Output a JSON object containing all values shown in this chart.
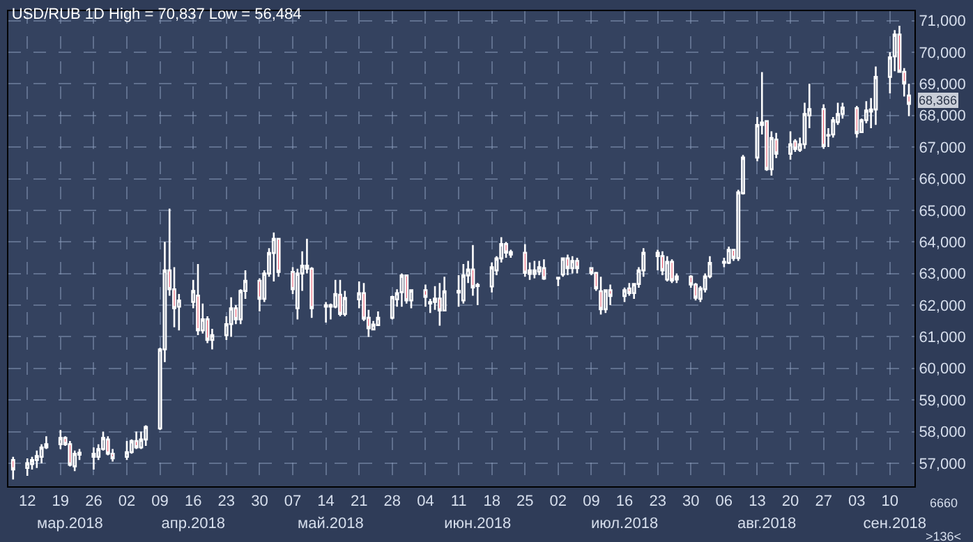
{
  "chart_data": {
    "type": "candlestick",
    "title": "USD/RUB 1D High = 70,837 Low = 56,484",
    "x": [
      "2018-03-09",
      "2018-03-12",
      "2018-03-13",
      "2018-03-14",
      "2018-03-15",
      "2018-03-16",
      "2018-03-19",
      "2018-03-20",
      "2018-03-21",
      "2018-03-22",
      "2018-03-23",
      "2018-03-26",
      "2018-03-27",
      "2018-03-28",
      "2018-03-29",
      "2018-03-30",
      "2018-04-02",
      "2018-04-03",
      "2018-04-04",
      "2018-04-05",
      "2018-04-06",
      "2018-04-09",
      "2018-04-10",
      "2018-04-11",
      "2018-04-12",
      "2018-04-13",
      "2018-04-16",
      "2018-04-17",
      "2018-04-18",
      "2018-04-19",
      "2018-04-20",
      "2018-04-23",
      "2018-04-24",
      "2018-04-25",
      "2018-04-26",
      "2018-04-27",
      "2018-04-30",
      "2018-05-01",
      "2018-05-02",
      "2018-05-03",
      "2018-05-04",
      "2018-05-07",
      "2018-05-08",
      "2018-05-09",
      "2018-05-10",
      "2018-05-11",
      "2018-05-14",
      "2018-05-15",
      "2018-05-16",
      "2018-05-17",
      "2018-05-18",
      "2018-05-21",
      "2018-05-22",
      "2018-05-23",
      "2018-05-24",
      "2018-05-25",
      "2018-05-28",
      "2018-05-29",
      "2018-05-30",
      "2018-05-31",
      "2018-06-01",
      "2018-06-04",
      "2018-06-05",
      "2018-06-06",
      "2018-06-07",
      "2018-06-08",
      "2018-06-11",
      "2018-06-12",
      "2018-06-13",
      "2018-06-14",
      "2018-06-15",
      "2018-06-18",
      "2018-06-19",
      "2018-06-20",
      "2018-06-21",
      "2018-06-22",
      "2018-06-25",
      "2018-06-26",
      "2018-06-27",
      "2018-06-28",
      "2018-06-29",
      "2018-07-02",
      "2018-07-03",
      "2018-07-04",
      "2018-07-05",
      "2018-07-06",
      "2018-07-09",
      "2018-07-10",
      "2018-07-11",
      "2018-07-12",
      "2018-07-13",
      "2018-07-16",
      "2018-07-17",
      "2018-07-18",
      "2018-07-19",
      "2018-07-20",
      "2018-07-23",
      "2018-07-24",
      "2018-07-25",
      "2018-07-26",
      "2018-07-27",
      "2018-07-30",
      "2018-07-31",
      "2018-08-01",
      "2018-08-02",
      "2018-08-03",
      "2018-08-06",
      "2018-08-07",
      "2018-08-08",
      "2018-08-09",
      "2018-08-10",
      "2018-08-13",
      "2018-08-14",
      "2018-08-15",
      "2018-08-16",
      "2018-08-17",
      "2018-08-20",
      "2018-08-21",
      "2018-08-22",
      "2018-08-23",
      "2018-08-24",
      "2018-08-27",
      "2018-08-28",
      "2018-08-29",
      "2018-08-30",
      "2018-08-31",
      "2018-09-03",
      "2018-09-04",
      "2018-09-05",
      "2018-09-06",
      "2018-09-07",
      "2018-09-10",
      "2018-09-11",
      "2018-09-12",
      "2018-09-13",
      "2018-09-14"
    ],
    "ohlc": [
      [
        57100,
        57200,
        56484,
        56800
      ],
      [
        56850,
        57150,
        56600,
        57000
      ],
      [
        56970,
        57200,
        56800,
        57100
      ],
      [
        57100,
        57400,
        56850,
        57230
      ],
      [
        57200,
        57600,
        57000,
        57500
      ],
      [
        57500,
        57850,
        57450,
        57600
      ],
      [
        57600,
        58050,
        57450,
        57800
      ],
      [
        57800,
        57850,
        57550,
        57600
      ],
      [
        57600,
        57700,
        56900,
        56950
      ],
      [
        56900,
        57400,
        56750,
        57300
      ],
      [
        57270,
        57450,
        57100,
        57330
      ],
      [
        57300,
        57500,
        56800,
        57200
      ],
      [
        57200,
        57600,
        57100,
        57450
      ],
      [
        57450,
        58000,
        57400,
        57800
      ],
      [
        57750,
        57850,
        57250,
        57300
      ],
      [
        57300,
        57450,
        57050,
        57150
      ],
      [
        57200,
        57700,
        57100,
        57350
      ],
      [
        57350,
        57750,
        57300,
        57700
      ],
      [
        57700,
        58000,
        57450,
        57500
      ],
      [
        57500,
        58000,
        57450,
        57750
      ],
      [
        57750,
        58200,
        57550,
        58150
      ],
      [
        58100,
        60650,
        58050,
        60600
      ],
      [
        60600,
        64000,
        60200,
        63100
      ],
      [
        63100,
        65050,
        62300,
        62500
      ],
      [
        62500,
        63200,
        61300,
        61900
      ],
      [
        61950,
        62350,
        61200,
        62150
      ],
      [
        62100,
        62800,
        61900,
        62450
      ],
      [
        62300,
        63300,
        61050,
        61200
      ],
      [
        61200,
        62050,
        61100,
        61550
      ],
      [
        61550,
        61650,
        60800,
        60900
      ],
      [
        60900,
        61250,
        60600,
        61050
      ],
      [
        61050,
        61650,
        60900,
        61400
      ],
      [
        61400,
        62250,
        61000,
        61900
      ],
      [
        61900,
        62000,
        61400,
        61550
      ],
      [
        61550,
        62500,
        61400,
        62450
      ],
      [
        62450,
        63100,
        62200,
        62770
      ],
      [
        62770,
        62850,
        61800,
        62200
      ],
      [
        62200,
        63100,
        62100,
        63000
      ],
      [
        63000,
        63800,
        62900,
        63650
      ],
      [
        63650,
        64300,
        62750,
        64100
      ],
      [
        64100,
        64100,
        62900,
        63050
      ],
      [
        63050,
        63200,
        62350,
        62500
      ],
      [
        61900,
        63150,
        61550,
        63000
      ],
      [
        63000,
        63700,
        62450,
        63250
      ],
      [
        63250,
        64100,
        63000,
        63150
      ],
      [
        63150,
        63200,
        61600,
        61900
      ],
      [
        61950,
        62100,
        61450,
        62000
      ],
      [
        61950,
        62050,
        61550,
        62000
      ],
      [
        61950,
        62800,
        61900,
        62350
      ],
      [
        62330,
        62800,
        61650,
        61720
      ],
      [
        61720,
        62450,
        61650,
        62230
      ],
      [
        62180,
        62750,
        61900,
        62380
      ],
      [
        62380,
        62700,
        61500,
        61570
      ],
      [
        61600,
        61850,
        61000,
        61270
      ],
      [
        61230,
        61500,
        61200,
        61390
      ],
      [
        61370,
        61800,
        61350,
        61600
      ],
      [
        61600,
        62300,
        61550,
        62260
      ],
      [
        62180,
        62500,
        61950,
        62380
      ],
      [
        62410,
        63000,
        61950,
        62940
      ],
      [
        62940,
        62950,
        62050,
        62150
      ],
      [
        62150,
        62500,
        61900,
        62470
      ],
      [
        62470,
        62650,
        61950,
        62260
      ],
      [
        62050,
        62200,
        61750,
        62100
      ],
      [
        62100,
        62600,
        61850,
        62210
      ],
      [
        62210,
        62700,
        61350,
        61830
      ],
      [
        61830,
        62900,
        61820,
        62440
      ],
      [
        62400,
        62950,
        61950,
        62450
      ],
      [
        62150,
        63300,
        62050,
        62940
      ],
      [
        62940,
        63400,
        62700,
        63130
      ],
      [
        63130,
        63900,
        62300,
        62560
      ],
      [
        62600,
        62700,
        62000,
        62640
      ],
      [
        62590,
        63350,
        62400,
        63200
      ],
      [
        63100,
        63550,
        62950,
        63480
      ],
      [
        63480,
        64150,
        63350,
        63930
      ],
      [
        63930,
        64000,
        63500,
        63660
      ],
      [
        63600,
        63750,
        63500,
        63680
      ],
      [
        63660,
        63930,
        62900,
        63020
      ],
      [
        63100,
        63350,
        62800,
        62990
      ],
      [
        62990,
        63400,
        62850,
        63100
      ],
      [
        63060,
        63400,
        62950,
        63200
      ],
      [
        63170,
        63450,
        62800,
        62840
      ],
      [
        62840,
        62900,
        62600,
        62870
      ],
      [
        62970,
        63500,
        62900,
        63480
      ],
      [
        63480,
        63600,
        62950,
        63170
      ],
      [
        63170,
        63550,
        63000,
        63400
      ],
      [
        63400,
        63500,
        63000,
        63170
      ],
      [
        63170,
        63200,
        62950,
        63020
      ],
      [
        63020,
        63050,
        62450,
        62530
      ],
      [
        62440,
        62900,
        61700,
        61870
      ],
      [
        61870,
        62500,
        61750,
        62470
      ],
      [
        62470,
        62650,
        62000,
        62290
      ],
      [
        62290,
        62550,
        62100,
        62470
      ],
      [
        62530,
        62700,
        62300,
        62380
      ],
      [
        62380,
        62700,
        62200,
        62670
      ],
      [
        62670,
        63200,
        62550,
        63100
      ],
      [
        63100,
        63800,
        62900,
        63660
      ],
      [
        63660,
        63750,
        63100,
        63550
      ],
      [
        63550,
        63700,
        62950,
        63100
      ],
      [
        62810,
        63550,
        62750,
        63370
      ],
      [
        63370,
        63450,
        62700,
        62780
      ],
      [
        62810,
        63000,
        62700,
        62910
      ],
      [
        62900,
        62950,
        62550,
        62650
      ],
      [
        62650,
        62700,
        62150,
        62230
      ],
      [
        62200,
        62600,
        62100,
        62530
      ],
      [
        62500,
        63000,
        62400,
        62910
      ],
      [
        62910,
        63550,
        62850,
        63340
      ],
      [
        63340,
        63500,
        63200,
        63370
      ],
      [
        63340,
        63850,
        63300,
        63750
      ],
      [
        63750,
        63750,
        63400,
        63490
      ],
      [
        63490,
        65650,
        63400,
        65570
      ],
      [
        65540,
        66750,
        65500,
        66670
      ],
      [
        66670,
        67950,
        66550,
        67700
      ],
      [
        67700,
        69370,
        67400,
        67780
      ],
      [
        67820,
        67850,
        66250,
        66300
      ],
      [
        66300,
        67500,
        66100,
        67290
      ],
      [
        67240,
        67450,
        66650,
        66790
      ],
      [
        66790,
        67500,
        66600,
        67090
      ],
      [
        67180,
        67250,
        66850,
        66940
      ],
      [
        66910,
        67300,
        66850,
        67090
      ],
      [
        67090,
        68400,
        66950,
        68050
      ],
      [
        68000,
        69000,
        67600,
        68200
      ],
      [
        68200,
        68350,
        66950,
        67030
      ],
      [
        67360,
        67600,
        67000,
        67380
      ],
      [
        67400,
        67950,
        67300,
        67850
      ],
      [
        67790,
        68400,
        67700,
        68050
      ],
      [
        68050,
        68400,
        67900,
        68250
      ],
      [
        68230,
        68300,
        67300,
        67440
      ],
      [
        67470,
        67900,
        67450,
        67850
      ],
      [
        67850,
        68450,
        67750,
        68160
      ],
      [
        68120,
        68550,
        67600,
        68190
      ],
      [
        68190,
        69550,
        67700,
        69220
      ],
      [
        69220,
        70000,
        68700,
        69840
      ],
      [
        69870,
        70700,
        69400,
        70560
      ],
      [
        70560,
        70837,
        69350,
        69380
      ],
      [
        69380,
        69500,
        68600,
        69010
      ],
      [
        68630,
        69000,
        67980,
        68366
      ]
    ],
    "xlim": [
      "2018-03-08T00:00",
      "2018-09-15T04:00"
    ],
    "xticks": [
      {
        "value": "2018-03-12",
        "label": "12"
      },
      {
        "value": "2018-03-19",
        "label": "19"
      },
      {
        "value": "2018-03-26",
        "label": "26"
      },
      {
        "value": "2018-04-02",
        "label": "02"
      },
      {
        "value": "2018-04-09",
        "label": "09"
      },
      {
        "value": "2018-04-16",
        "label": "16"
      },
      {
        "value": "2018-04-23",
        "label": "23"
      },
      {
        "value": "2018-04-30",
        "label": "30"
      },
      {
        "value": "2018-05-07",
        "label": "07"
      },
      {
        "value": "2018-05-14",
        "label": "14"
      },
      {
        "value": "2018-05-21",
        "label": "21"
      },
      {
        "value": "2018-05-28",
        "label": "28"
      },
      {
        "value": "2018-06-04",
        "label": "04"
      },
      {
        "value": "2018-06-11",
        "label": "11"
      },
      {
        "value": "2018-06-18",
        "label": "18"
      },
      {
        "value": "2018-06-25",
        "label": "25"
      },
      {
        "value": "2018-07-02",
        "label": "02"
      },
      {
        "value": "2018-07-09",
        "label": "09"
      },
      {
        "value": "2018-07-16",
        "label": "16"
      },
      {
        "value": "2018-07-23",
        "label": "23"
      },
      {
        "value": "2018-07-30",
        "label": "30"
      },
      {
        "value": "2018-08-06",
        "label": "06"
      },
      {
        "value": "2018-08-13",
        "label": "13"
      },
      {
        "value": "2018-08-20",
        "label": "20"
      },
      {
        "value": "2018-08-27",
        "label": "27"
      },
      {
        "value": "2018-09-03",
        "label": "03"
      },
      {
        "value": "2018-09-10",
        "label": "10"
      }
    ],
    "x2lim": [
      "2018-03-08T00:00",
      "2018-09-15T04:00"
    ],
    "x2ticks": [
      {
        "value": "2018-03-21",
        "label": "мар.2018"
      },
      {
        "value": "2018-04-16",
        "label": "апр.2018"
      },
      {
        "value": "2018-05-15",
        "label": "май.2018"
      },
      {
        "value": "2018-06-15",
        "label": "июн.2018"
      },
      {
        "value": "2018-07-16",
        "label": "июл.2018"
      },
      {
        "value": "2018-08-15",
        "label": "авг.2018"
      },
      {
        "value": "2018-09-11",
        "label": "сен.2018"
      }
    ],
    "ylim": [
      56270,
      71300
    ],
    "yticks": [
      {
        "value": 57000,
        "label": "57,000"
      },
      {
        "value": 58000,
        "label": "58,000"
      },
      {
        "value": 59000,
        "label": "59,000"
      },
      {
        "value": 60000,
        "label": "60,000"
      },
      {
        "value": 61000,
        "label": "61,000"
      },
      {
        "value": 62000,
        "label": "62,000"
      },
      {
        "value": 63000,
        "label": "63,000"
      },
      {
        "value": 64000,
        "label": "64,000"
      },
      {
        "value": 65000,
        "label": "65,000"
      },
      {
        "value": 66000,
        "label": "66,000"
      },
      {
        "value": 67000,
        "label": "67,000"
      },
      {
        "value": 68000,
        "label": "68,000"
      },
      {
        "value": 69000,
        "label": "69,000"
      },
      {
        "value": 70000,
        "label": "70,000"
      },
      {
        "value": 71000,
        "label": "71,000"
      }
    ],
    "annotations": [
      "68,366",
      "6660",
      ">136<"
    ],
    "grid": true
  }
}
